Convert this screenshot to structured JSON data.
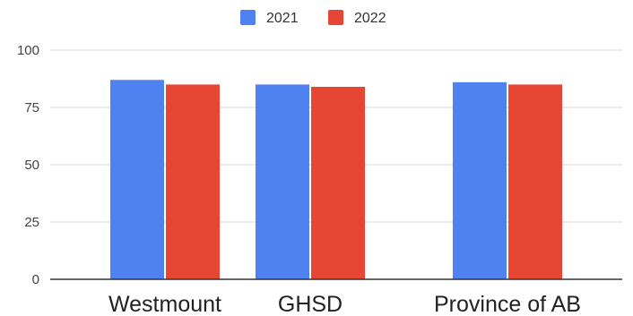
{
  "chart_data": {
    "type": "bar",
    "categories": [
      "Westmount",
      "GHSD",
      "Province of AB"
    ],
    "series": [
      {
        "name": "2021",
        "values": [
          87,
          85,
          86
        ],
        "color": "#4f81f0"
      },
      {
        "name": "2022",
        "values": [
          85,
          84,
          85
        ],
        "color": "#e84634"
      }
    ],
    "yticks": [
      "0",
      "25",
      "50",
      "75",
      "100"
    ],
    "ylim": [
      0,
      100
    ],
    "grid": true,
    "legend_position": "top-center",
    "title": "",
    "xlabel": "",
    "ylabel": ""
  }
}
